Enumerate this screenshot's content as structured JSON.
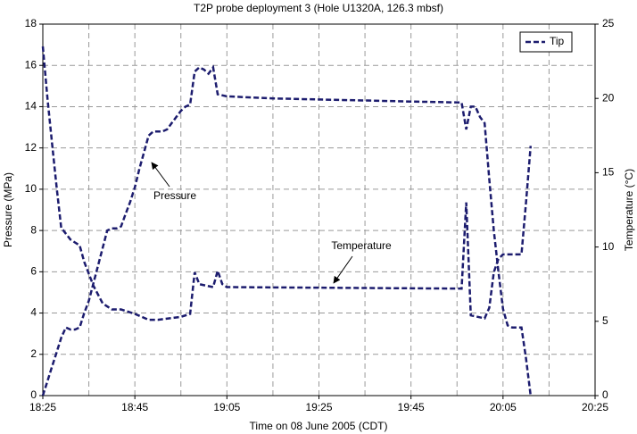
{
  "chart_data": {
    "type": "line",
    "title": "T2P probe deployment 3 (Hole U1320A, 126.3 mbsf)",
    "x_label": "Time on 08 June 2005 (CDT)",
    "y_label": "Pressure (MPa)",
    "y2_label": "Temperature (°C)",
    "annotations": [
      "Pressure",
      "Temperature"
    ],
    "xlim": [
      "18:25",
      "20:25"
    ],
    "xticks": [
      "18:25",
      "18:45",
      "19:05",
      "19:25",
      "19:45",
      "20:05",
      "20:25"
    ],
    "x_grid_subdivisions": 2,
    "ylim": [
      0,
      18
    ],
    "yticks": [
      0,
      2,
      4,
      6,
      8,
      10,
      12,
      14,
      16,
      18
    ],
    "y2lim": [
      0,
      25
    ],
    "y2ticks": [
      0,
      5,
      10,
      15,
      20,
      25
    ],
    "grid": true,
    "line_style": "dashed",
    "legend": "top-right",
    "series": [
      {
        "name": "Tip",
        "color": "#1c1c6e",
        "x": [
          "18:25",
          "18:26",
          "18:27",
          "18:28",
          "18:29",
          "18:30",
          "18:31",
          "18:32",
          "18:33",
          "18:34",
          "18:35",
          "18:37",
          "18:39",
          "18:40",
          "18:41",
          "18:42",
          "18:43",
          "18:44",
          "18:45",
          "18:46",
          "18:47",
          "18:48",
          "18:49",
          "18:50",
          "18:51",
          "18:52",
          "18:53",
          "18:54",
          "18:55",
          "18:56",
          "18:57",
          "18:58",
          "18:59",
          "19:00",
          "19:01",
          "19:02",
          "19:03",
          "19:05",
          "19:15",
          "19:25",
          "19:35",
          "19:45",
          "19:56",
          "19:57",
          "19:58",
          "19:59",
          "20:00",
          "20:01",
          "20:02",
          "20:03",
          "20:04",
          "20:05",
          "20:06",
          "20:07",
          "20:08",
          "20:09",
          "20:10",
          "20:11"
        ],
        "values": [
          0,
          0.7,
          1.4,
          2.1,
          2.8,
          3.3,
          3.2,
          3.2,
          3.3,
          4,
          4.6,
          6.3,
          8,
          8.1,
          8.1,
          8.2,
          8.8,
          9.4,
          10.1,
          11,
          11.8,
          12.6,
          12.8,
          12.8,
          12.8,
          12.9,
          13.2,
          13.5,
          13.8,
          14,
          14.1,
          15.7,
          15.9,
          15.8,
          15.6,
          15.9,
          14.6,
          14.5,
          14.4,
          14.35,
          14.3,
          14.25,
          14.2,
          12.9,
          14,
          14,
          13.5,
          13.2,
          10.5,
          8,
          6,
          4.2,
          3.4,
          3.3,
          3.3,
          3.3,
          1.8,
          0
        ]
      },
      {
        "color": "#1c1c6e",
        "axis": "y2",
        "x": [
          "18:25",
          "18:26",
          "18:27",
          "18:28",
          "18:29",
          "18:31",
          "18:33",
          "18:34",
          "18:36",
          "18:38",
          "18:40",
          "18:42",
          "18:45",
          "18:48",
          "18:50",
          "18:55",
          "18:57",
          "18:58",
          "18:59",
          "19:02",
          "19:03",
          "19:04",
          "19:05",
          "19:56",
          "19:57",
          "19:58",
          "20:01",
          "20:02",
          "20:03",
          "20:04",
          "20:05",
          "20:09",
          "20:10",
          "20:11"
        ],
        "values": [
          23.5,
          20,
          17,
          14,
          11.3,
          10.5,
          10.1,
          9,
          7.4,
          6.2,
          5.8,
          5.8,
          5.5,
          5.1,
          5.1,
          5.3,
          5.5,
          8.3,
          7.5,
          7.3,
          8.4,
          7.5,
          7.3,
          7.2,
          13,
          5.4,
          5.2,
          5.9,
          8.3,
          9.2,
          9.5,
          9.5,
          13,
          16.8
        ]
      }
    ]
  }
}
